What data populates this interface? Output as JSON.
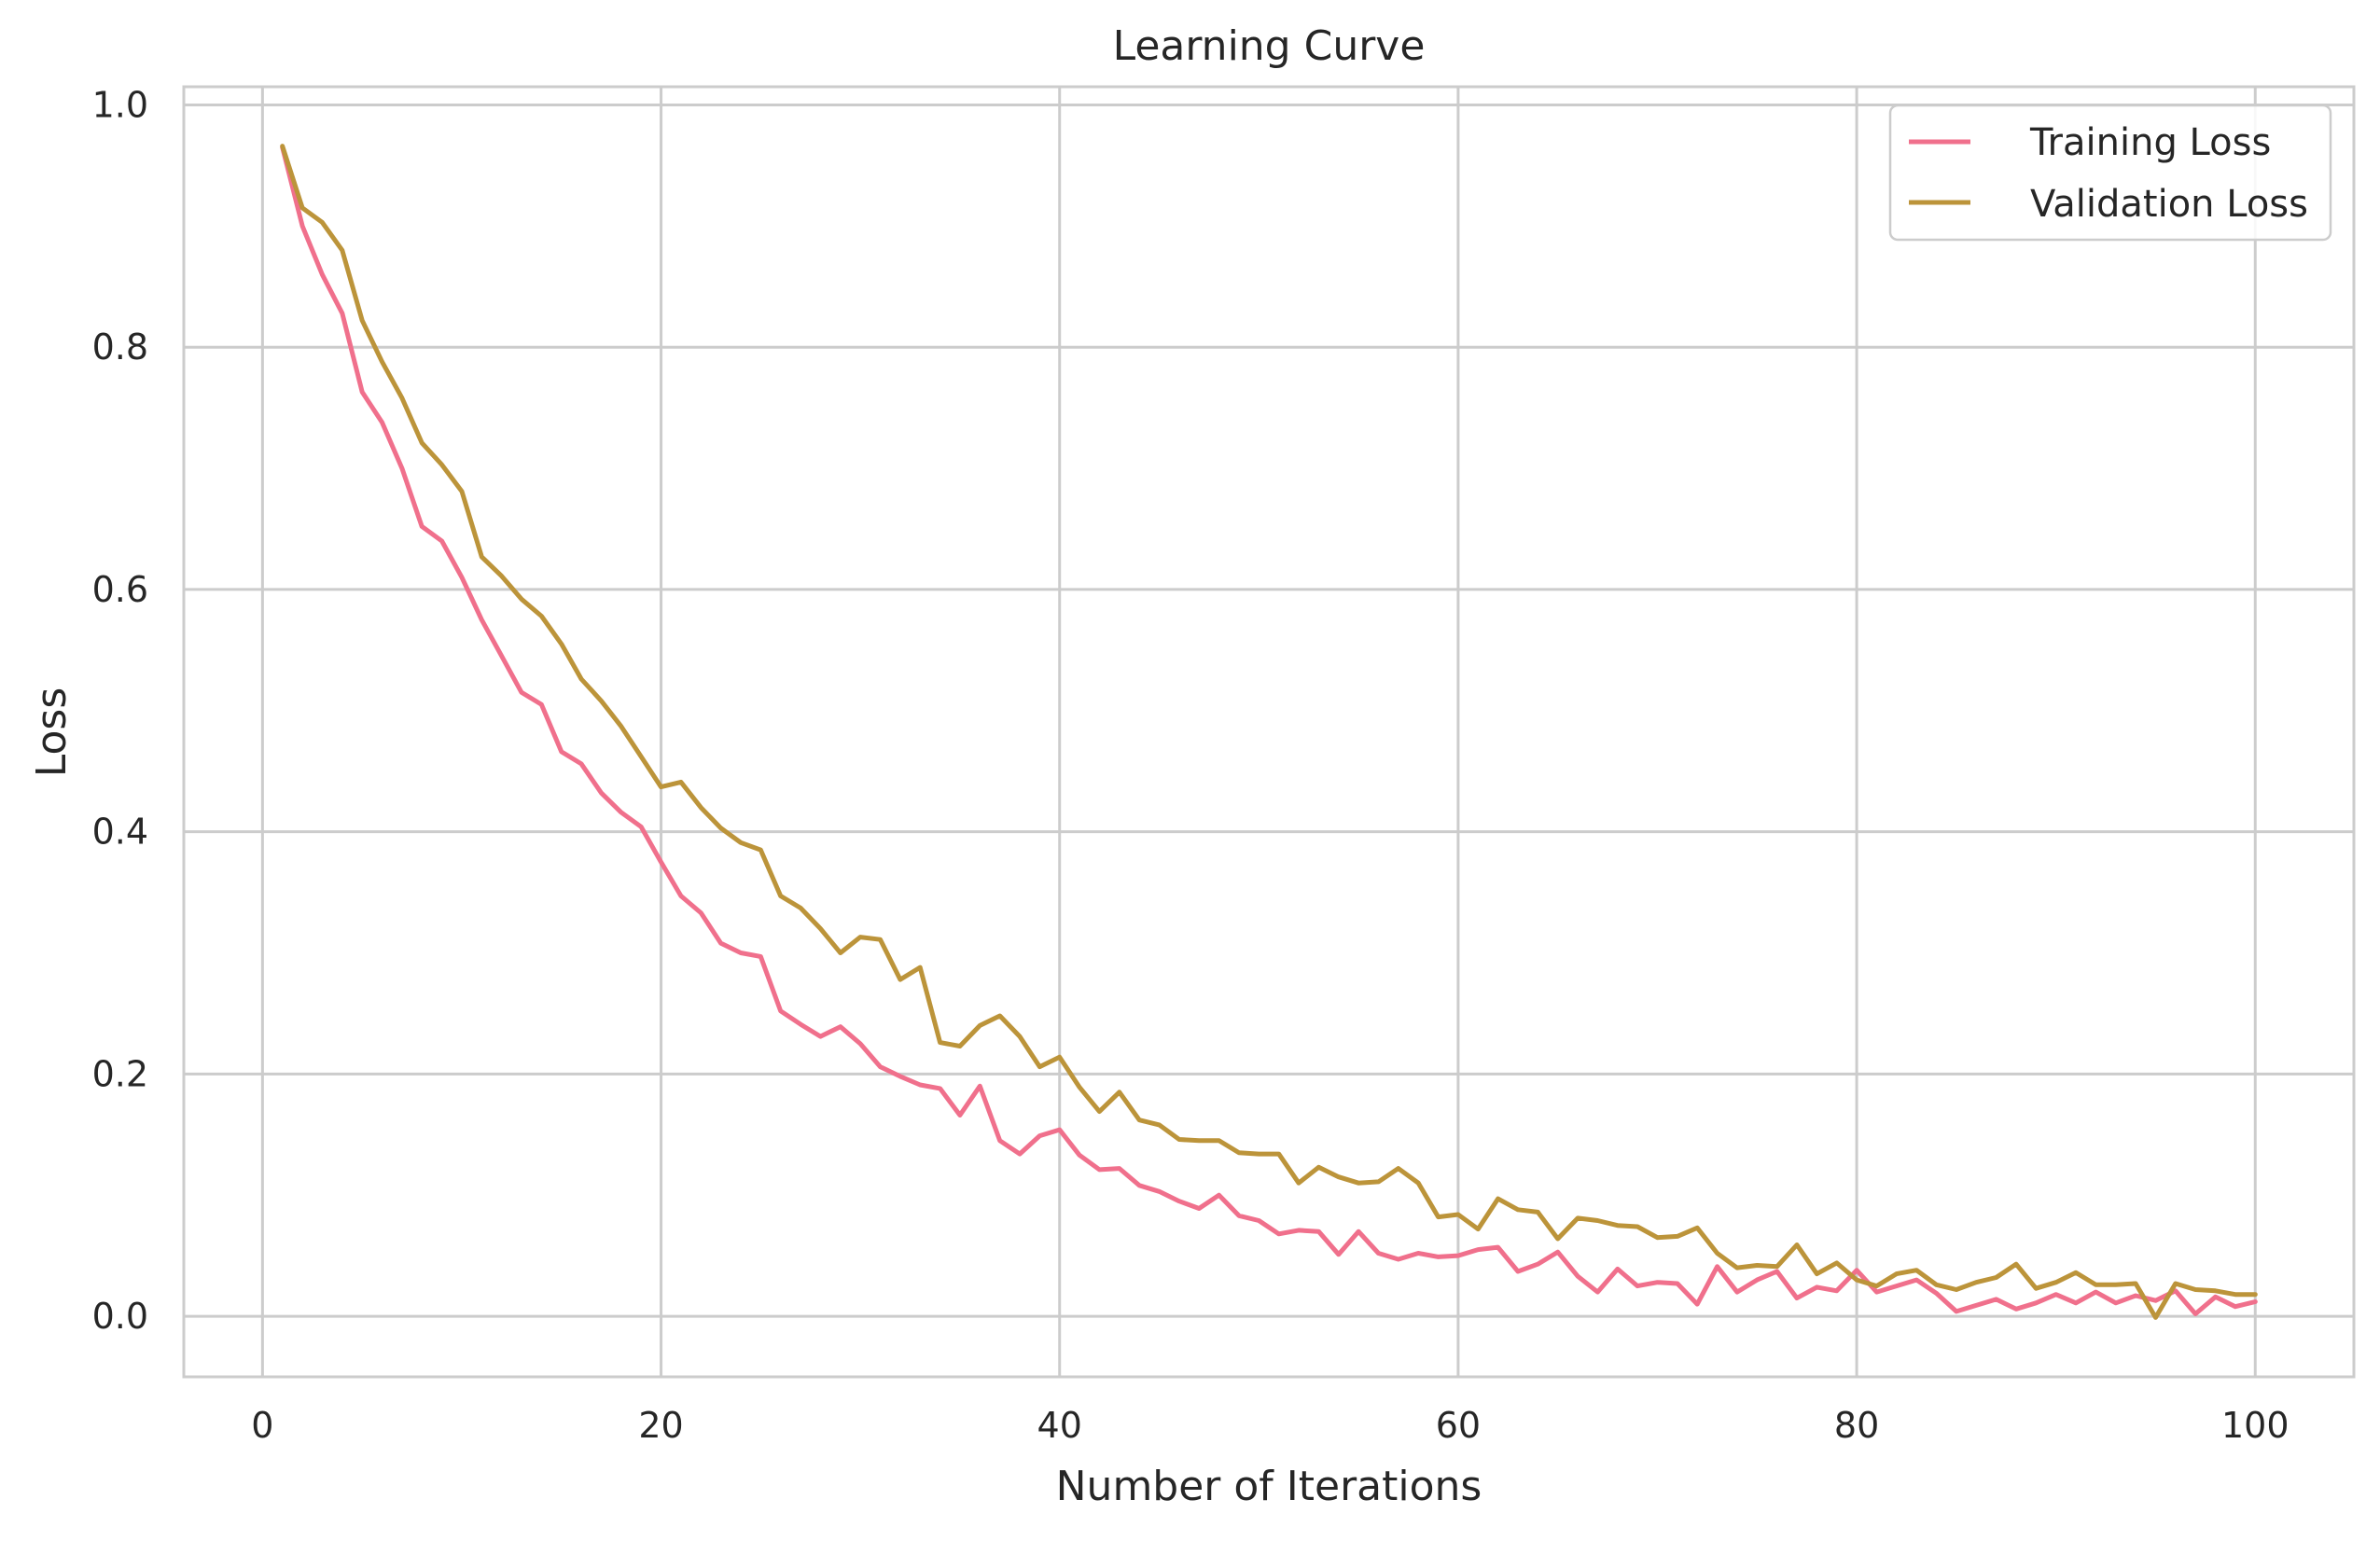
{
  "chart_data": {
    "type": "line",
    "title": "Learning Curve",
    "xlabel": "Number of Iterations",
    "ylabel": "Loss",
    "xlim": [
      -3.95,
      104.95
    ],
    "ylim": [
      -0.05,
      1.015
    ],
    "xticks": [
      0,
      20,
      40,
      60,
      80,
      100
    ],
    "xtick_labels": [
      "0",
      "20",
      "40",
      "60",
      "80",
      "100"
    ],
    "yticks": [
      0.0,
      0.2,
      0.4,
      0.6,
      0.8,
      1.0
    ],
    "ytick_labels": [
      "0.0",
      "0.2",
      "0.4",
      "0.6",
      "0.8",
      "1.0"
    ],
    "grid": true,
    "legend_position": "upper right",
    "x": [
      1,
      2,
      3,
      4,
      5,
      6,
      7,
      8,
      9,
      10,
      11,
      12,
      13,
      14,
      15,
      16,
      17,
      18,
      19,
      20,
      21,
      22,
      23,
      24,
      25,
      26,
      27,
      28,
      29,
      30,
      31,
      32,
      33,
      34,
      35,
      36,
      37,
      38,
      39,
      40,
      41,
      42,
      43,
      44,
      45,
      46,
      47,
      48,
      49,
      50,
      51,
      52,
      53,
      54,
      55,
      56,
      57,
      58,
      59,
      60,
      61,
      62,
      63,
      64,
      65,
      66,
      67,
      68,
      69,
      70,
      71,
      72,
      73,
      74,
      75,
      76,
      77,
      78,
      79,
      80,
      81,
      82,
      83,
      84,
      85,
      86,
      87,
      88,
      89,
      90,
      91,
      92,
      93,
      94,
      95,
      96,
      97,
      98,
      99,
      100
    ],
    "series": [
      {
        "name": "Training Loss",
        "color": "#f0708c",
        "values": [
          0.965,
          0.9,
          0.86,
          0.828,
          0.763,
          0.738,
          0.7,
          0.652,
          0.64,
          0.61,
          0.575,
          0.545,
          0.515,
          0.505,
          0.466,
          0.456,
          0.432,
          0.416,
          0.404,
          0.375,
          0.347,
          0.333,
          0.308,
          0.3,
          0.297,
          0.252,
          0.241,
          0.231,
          0.239,
          0.225,
          0.206,
          0.198,
          0.191,
          0.188,
          0.166,
          0.19,
          0.145,
          0.134,
          0.149,
          0.154,
          0.133,
          0.121,
          0.122,
          0.108,
          0.103,
          0.095,
          0.089,
          0.1,
          0.083,
          0.079,
          0.068,
          0.071,
          0.07,
          0.051,
          0.07,
          0.052,
          0.047,
          0.052,
          0.049,
          0.05,
          0.055,
          0.057,
          0.037,
          0.043,
          0.053,
          0.033,
          0.02,
          0.039,
          0.025,
          0.028,
          0.027,
          0.01,
          0.041,
          0.02,
          0.03,
          0.037,
          0.015,
          0.024,
          0.021,
          0.038,
          0.02,
          0.025,
          0.03,
          0.019,
          0.004,
          0.009,
          0.014,
          0.006,
          0.011,
          0.018,
          0.011,
          0.02,
          0.011,
          0.017,
          0.013,
          0.021,
          0.002,
          0.016,
          0.008,
          0.012
        ]
      },
      {
        "name": "Validation Loss",
        "color": "#bc943a",
        "values": [
          0.966,
          0.915,
          0.903,
          0.88,
          0.822,
          0.788,
          0.758,
          0.721,
          0.703,
          0.681,
          0.627,
          0.611,
          0.592,
          0.578,
          0.555,
          0.526,
          0.508,
          0.487,
          0.462,
          0.437,
          0.441,
          0.42,
          0.403,
          0.391,
          0.385,
          0.347,
          0.337,
          0.32,
          0.3,
          0.313,
          0.311,
          0.278,
          0.288,
          0.226,
          0.223,
          0.24,
          0.248,
          0.231,
          0.206,
          0.214,
          0.189,
          0.169,
          0.185,
          0.162,
          0.158,
          0.146,
          0.145,
          0.145,
          0.135,
          0.134,
          0.134,
          0.11,
          0.123,
          0.115,
          0.11,
          0.111,
          0.122,
          0.11,
          0.082,
          0.084,
          0.072,
          0.097,
          0.088,
          0.086,
          0.064,
          0.081,
          0.079,
          0.075,
          0.074,
          0.065,
          0.066,
          0.073,
          0.052,
          0.04,
          0.042,
          0.041,
          0.059,
          0.035,
          0.044,
          0.03,
          0.025,
          0.035,
          0.038,
          0.026,
          0.022,
          0.028,
          0.032,
          0.043,
          0.023,
          0.028,
          0.036,
          0.026,
          0.026,
          0.027,
          -0.001,
          0.027,
          0.022,
          0.021,
          0.018,
          0.018
        ]
      }
    ]
  }
}
